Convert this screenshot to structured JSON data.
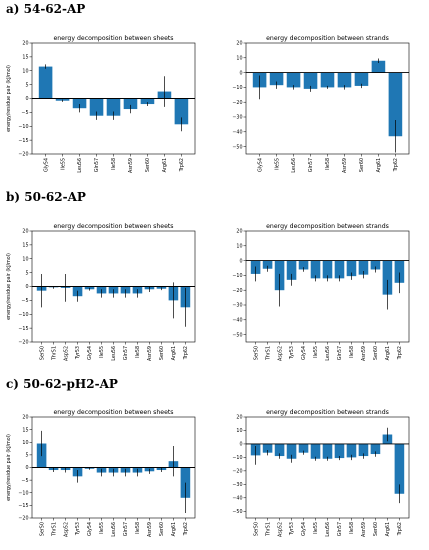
{
  "panels": [
    {
      "label": "a) 54-62-AP"
    },
    {
      "label": "b) 50-62-AP"
    },
    {
      "label": "c) 50-62-pH2-AP"
    }
  ],
  "colors": {
    "bar": "#1f77b4",
    "error": "#000000",
    "axis": "#000000"
  },
  "chart_data": [
    {
      "type": "bar",
      "title": "energy decomposition between sheets",
      "ylabel": "energy/residue pair (kJ/mol)",
      "xlabel": "",
      "ylim": [
        -20,
        20
      ],
      "yticks": [
        -20,
        -15,
        -10,
        -5,
        0,
        5,
        10,
        15,
        20
      ],
      "categories": [
        "Gly54",
        "Ile55",
        "Leu56",
        "Gln57",
        "Ile58",
        "Asn59",
        "Ser60",
        "Arg61",
        "Trp62"
      ],
      "values": [
        11.5,
        -0.8,
        -3.5,
        -6.2,
        -6.2,
        -3.8,
        -2.0,
        2.5,
        -9.3
      ],
      "errors": [
        0.8,
        0.4,
        1.5,
        1.5,
        1.5,
        1.5,
        0.7,
        5.5,
        2.5
      ],
      "grid": false
    },
    {
      "type": "bar",
      "title": "energy decomposition between strands",
      "ylabel": "",
      "xlabel": "",
      "ylim": [
        -55,
        20
      ],
      "yticks": [
        -50,
        -40,
        -30,
        -20,
        -10,
        0,
        10,
        20
      ],
      "categories": [
        "Gly54",
        "Ile55",
        "Leu56",
        "Gln57",
        "Ile58",
        "Asn59",
        "Ser60",
        "Arg61",
        "Trp62"
      ],
      "values": [
        -10.0,
        -8.5,
        -10.0,
        -11.0,
        -10.0,
        -10.0,
        -9.0,
        8.0,
        -43.0
      ],
      "errors": [
        8.0,
        2.5,
        1.5,
        2.0,
        1.0,
        1.5,
        1.5,
        1.5,
        11.0
      ],
      "grid": false
    },
    {
      "type": "bar",
      "title": "energy decomposition between sheets",
      "ylabel": "energy/residue pair (kJ/mol)",
      "xlabel": "",
      "ylim": [
        -20,
        20
      ],
      "yticks": [
        -20,
        -15,
        -10,
        -5,
        0,
        5,
        10,
        15,
        20
      ],
      "categories": [
        "Ser50",
        "Thr51",
        "Asp52",
        "Tyr53",
        "Gly54",
        "Ile55",
        "Leu56",
        "Gln57",
        "Ile58",
        "Asn59",
        "Ser60",
        "Arg61",
        "Trp62"
      ],
      "values": [
        -1.5,
        -0.3,
        -0.5,
        -3.5,
        -1.0,
        -2.5,
        -2.5,
        -2.5,
        -2.5,
        -1.0,
        -0.8,
        -5.0,
        -7.5
      ],
      "errors": [
        6.0,
        0.5,
        5.0,
        2.0,
        0.5,
        1.5,
        1.5,
        1.5,
        1.5,
        1.0,
        0.5,
        6.5,
        7.0
      ],
      "grid": false
    },
    {
      "type": "bar",
      "title": "energy decomposition between strands",
      "ylabel": "",
      "xlabel": "",
      "ylim": [
        -55,
        20
      ],
      "yticks": [
        -50,
        -40,
        -30,
        -20,
        -10,
        0,
        10,
        20
      ],
      "categories": [
        "Ser50",
        "Thr51",
        "Asp52",
        "Tyr53",
        "Gly54",
        "Ile55",
        "Leu56",
        "Gln57",
        "Ile58",
        "Asn59",
        "Ser60",
        "Arg61",
        "Trp62"
      ],
      "values": [
        -9.0,
        -5.5,
        -20.0,
        -13.0,
        -6.0,
        -12.0,
        -12.0,
        -12.0,
        -10.5,
        -9.5,
        -6.0,
        -23.0,
        -15.0
      ],
      "errors": [
        5.0,
        2.0,
        11.0,
        4.0,
        1.5,
        2.0,
        2.0,
        2.0,
        2.5,
        2.5,
        2.0,
        10.0,
        7.0
      ],
      "grid": false
    },
    {
      "type": "bar",
      "title": "energy decomposition between sheets",
      "ylabel": "energy/residue pair (kJ/mol)",
      "xlabel": "",
      "ylim": [
        -20,
        20
      ],
      "yticks": [
        -20,
        -15,
        -10,
        -5,
        0,
        5,
        10,
        15,
        20
      ],
      "categories": [
        "Ser50",
        "Thr51",
        "Asp52",
        "Tyr53",
        "Gly54",
        "Ile55",
        "Leu56",
        "Gln57",
        "Ile58",
        "Asn59",
        "Ser60",
        "Arg61",
        "Trp62"
      ],
      "values": [
        9.5,
        -1.0,
        -1.0,
        -3.5,
        -0.5,
        -2.0,
        -2.0,
        -2.0,
        -2.0,
        -1.5,
        -1.0,
        2.5,
        -12.0
      ],
      "errors": [
        5.0,
        0.8,
        1.0,
        2.5,
        0.4,
        1.5,
        1.5,
        1.5,
        1.5,
        1.0,
        0.8,
        6.0,
        6.0
      ],
      "grid": false
    },
    {
      "type": "bar",
      "title": "energy decomposition between strands",
      "ylabel": "",
      "xlabel": "",
      "ylim": [
        -55,
        20
      ],
      "yticks": [
        -50,
        -40,
        -30,
        -20,
        -10,
        0,
        10,
        20
      ],
      "categories": [
        "Ser50",
        "Thr51",
        "Asp52",
        "Tyr53",
        "Gly54",
        "Ile55",
        "Leu56",
        "Gln57",
        "Ile58",
        "Asn59",
        "Ser60",
        "Arg61",
        "Trp62"
      ],
      "values": [
        -8.5,
        -6.5,
        -9.0,
        -11.0,
        -6.5,
        -11.0,
        -11.0,
        -10.5,
        -10.0,
        -9.0,
        -7.5,
        7.0,
        -37.0
      ],
      "errors": [
        7.0,
        2.0,
        2.0,
        3.0,
        1.5,
        1.5,
        1.5,
        1.5,
        2.0,
        2.0,
        2.0,
        5.0,
        7.0
      ],
      "grid": false
    }
  ]
}
